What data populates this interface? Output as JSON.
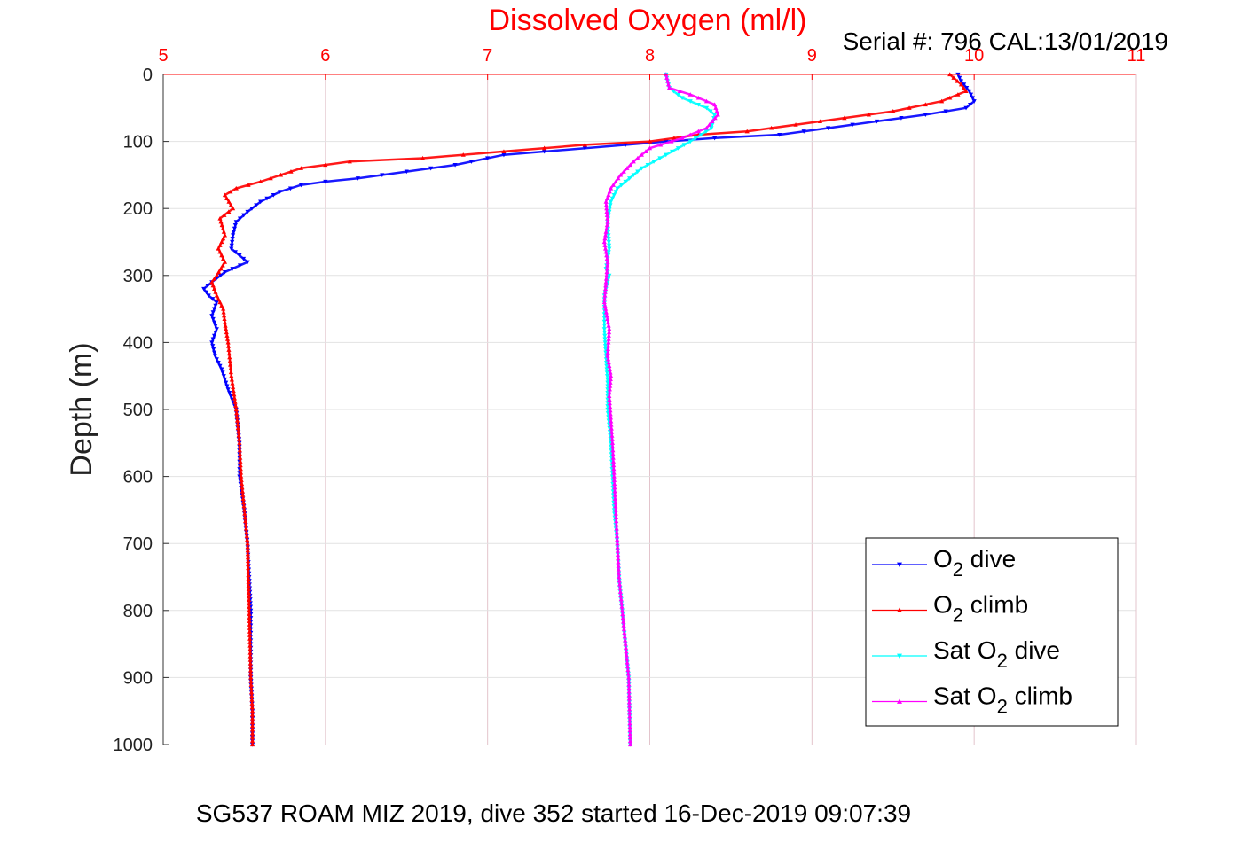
{
  "chart_data": {
    "type": "scatter",
    "title": "Dissolved Oxygen (ml/l)",
    "subtitle": "Serial #: 796  CAL:13/01/2019",
    "caption": "SG537 ROAM MIZ 2019, dive 352 started 16-Dec-2019 09:07:39",
    "ylabel": "Depth (m)",
    "xlabel": "",
    "xlim": [
      5,
      11
    ],
    "ylim": [
      1000,
      0
    ],
    "x_ticks": [
      "5",
      "6",
      "7",
      "8",
      "9",
      "10",
      "11"
    ],
    "y_ticks": [
      "0",
      "100",
      "200",
      "300",
      "400",
      "500",
      "600",
      "700",
      "800",
      "900",
      "1000"
    ],
    "grid": true,
    "legend_position": "bottom-right",
    "colors": {
      "title": "#ff0000",
      "x_ticks": "#ff0000",
      "grid": "#e3c4cc",
      "axis": "#ff0000"
    },
    "series": [
      {
        "name": "O2 dive",
        "legend_main": "O",
        "legend_sub": "2",
        "legend_suffix": " dive",
        "color": "#0000ff",
        "marker": "triangle-down",
        "x": [
          9.9,
          9.92,
          9.97,
          10.0,
          9.95,
          9.7,
          9.4,
          9.1,
          8.8,
          8.4,
          8.1,
          7.6,
          7.1,
          6.8,
          6.5,
          6.2,
          6.0,
          5.85,
          5.72,
          5.6,
          5.52,
          5.45,
          5.43,
          5.42,
          5.52,
          5.38,
          5.3,
          5.25,
          5.28,
          5.33,
          5.3,
          5.33,
          5.3,
          5.32,
          5.36,
          5.4,
          5.45,
          5.47,
          5.47,
          5.5,
          5.52,
          5.53,
          5.54,
          5.54,
          5.54,
          5.55,
          5.55
        ],
        "y": [
          0,
          10,
          25,
          40,
          50,
          60,
          70,
          80,
          90,
          95,
          100,
          110,
          120,
          135,
          145,
          155,
          160,
          165,
          175,
          190,
          205,
          220,
          240,
          260,
          280,
          295,
          310,
          320,
          330,
          340,
          360,
          380,
          400,
          420,
          440,
          470,
          500,
          550,
          600,
          650,
          700,
          750,
          800,
          850,
          900,
          950,
          1000
        ]
      },
      {
        "name": "O2 climb",
        "legend_main": "O",
        "legend_sub": "2",
        "legend_suffix": " climb",
        "color": "#ff0000",
        "marker": "triangle-up",
        "x": [
          9.85,
          9.92,
          9.95,
          9.8,
          9.5,
          9.2,
          8.9,
          8.6,
          8.3,
          8.0,
          7.6,
          7.1,
          6.6,
          6.15,
          5.85,
          5.6,
          5.45,
          5.38,
          5.43,
          5.35,
          5.38,
          5.34,
          5.38,
          5.33,
          5.3,
          5.33,
          5.37,
          5.38,
          5.4,
          5.42,
          5.45,
          5.47,
          5.48,
          5.5,
          5.52,
          5.53,
          5.54,
          5.55,
          5.55
        ],
        "y": [
          0,
          15,
          25,
          40,
          55,
          65,
          75,
          85,
          90,
          100,
          105,
          115,
          125,
          130,
          140,
          160,
          170,
          180,
          200,
          215,
          240,
          260,
          280,
          300,
          310,
          330,
          350,
          370,
          400,
          450,
          500,
          550,
          600,
          650,
          700,
          800,
          900,
          950,
          1000
        ]
      },
      {
        "name": "Sat O2 dive",
        "legend_main": "Sat O",
        "legend_sub": "2",
        "legend_suffix": " dive",
        "color": "#00ffff",
        "marker": "triangle-down",
        "x": [
          8.1,
          8.12,
          8.2,
          8.35,
          8.4,
          8.38,
          8.25,
          8.1,
          7.95,
          7.9,
          7.85,
          7.8,
          7.76,
          7.74,
          7.75,
          7.73,
          7.75,
          7.72,
          7.72,
          7.73,
          7.74,
          7.74,
          7.76,
          7.77,
          7.78,
          7.8,
          7.81,
          7.83,
          7.85,
          7.87,
          7.88
        ],
        "y": [
          0,
          20,
          35,
          50,
          60,
          80,
          100,
          120,
          140,
          150,
          160,
          170,
          190,
          220,
          260,
          290,
          300,
          330,
          380,
          420,
          460,
          500,
          550,
          600,
          650,
          700,
          750,
          800,
          850,
          900,
          1000
        ]
      },
      {
        "name": "Sat O2 climb",
        "legend_main": "Sat O",
        "legend_sub": "2",
        "legend_suffix": " climb",
        "color": "#ff00ff",
        "marker": "triangle-up",
        "x": [
          8.1,
          8.12,
          8.25,
          8.4,
          8.42,
          8.35,
          8.2,
          8.0,
          7.9,
          7.82,
          7.76,
          7.73,
          7.74,
          7.72,
          7.74,
          7.73,
          7.72,
          7.75,
          7.74,
          7.76,
          7.75,
          7.77,
          7.78,
          7.79,
          7.8,
          7.81,
          7.83,
          7.85,
          7.87,
          7.88
        ],
        "y": [
          0,
          20,
          30,
          45,
          60,
          80,
          95,
          110,
          130,
          150,
          170,
          190,
          220,
          250,
          280,
          310,
          340,
          380,
          420,
          450,
          480,
          550,
          600,
          650,
          700,
          750,
          800,
          850,
          900,
          1000
        ]
      }
    ]
  }
}
